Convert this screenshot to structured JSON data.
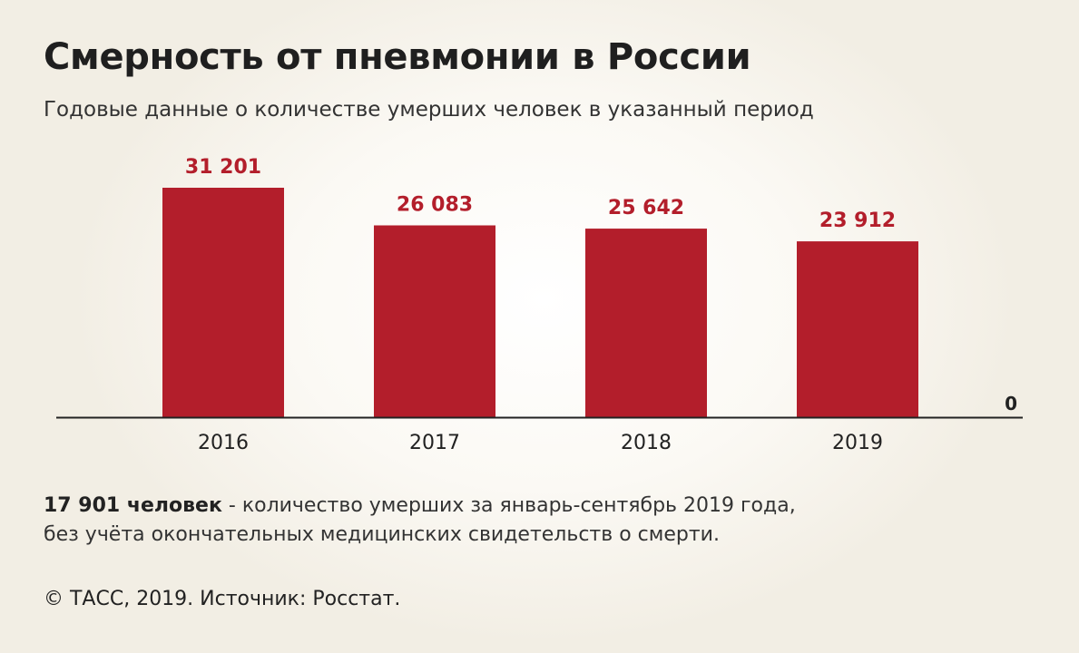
{
  "title": "Смерность от пневмонии в России",
  "subtitle": "Годовые данные о количестве умерших человек в указанный период",
  "chart_data": {
    "type": "bar",
    "categories": [
      "2016",
      "2017",
      "2018",
      "2019"
    ],
    "values": [
      31201,
      26083,
      25642,
      23912
    ],
    "value_labels": [
      "31 201",
      "26 083",
      "25 642",
      "23 912"
    ],
    "zero_label": "0",
    "ylim": [
      0,
      31201
    ],
    "bar_color": "#b31e2b",
    "label_color": "#b31e2b",
    "grid": false
  },
  "note": {
    "bold": "17 901 человек",
    "line1_rest": " - количество умерших за январь-сентябрь 2019 года,",
    "line2": "без учёта окончательных медицинских свидетельств о смерти."
  },
  "copyright": "© ТАСС, 2019. Источник: Росстат."
}
